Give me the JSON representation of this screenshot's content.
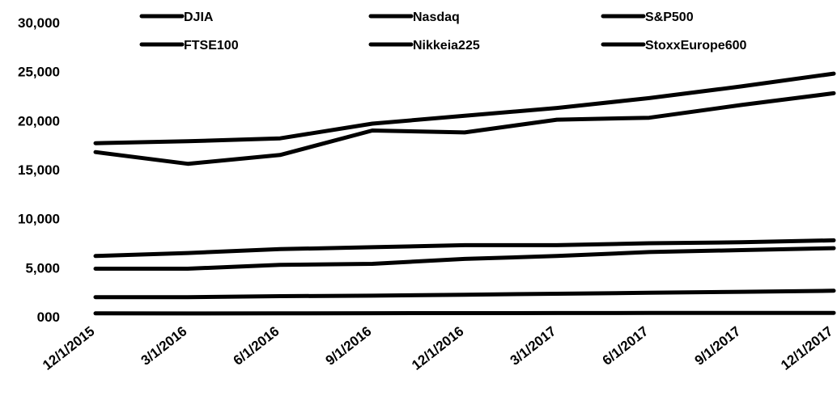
{
  "chart_data": {
    "type": "line",
    "title": "",
    "xlabel": "",
    "ylabel": "",
    "ylim": [
      0,
      30000
    ],
    "yticks": [
      0,
      5000,
      10000,
      15000,
      20000,
      25000,
      30000
    ],
    "ytick_labels": [
      "000",
      "5,000",
      "10,000",
      "15,000",
      "20,000",
      "25,000",
      "30,000"
    ],
    "categories": [
      "12/1/2015",
      "3/1/2016",
      "6/1/2016",
      "9/1/2016",
      "12/1/2016",
      "3/1/2017",
      "6/1/2017",
      "9/1/2017",
      "12/1/2017"
    ],
    "grid": false,
    "legend_placement": "top",
    "series": [
      {
        "name": "DJIA",
        "values": [
          17700,
          17900,
          18200,
          19700,
          20500,
          21300,
          22300,
          23500,
          24800
        ]
      },
      {
        "name": "Nasdaq",
        "values": [
          4900,
          4900,
          5300,
          5400,
          5900,
          6200,
          6600,
          6800,
          7000
        ]
      },
      {
        "name": "S&P500",
        "values": [
          2000,
          2000,
          2100,
          2150,
          2250,
          2350,
          2450,
          2550,
          2650
        ]
      },
      {
        "name": "FTSE100",
        "values": [
          6200,
          6500,
          6900,
          7100,
          7300,
          7300,
          7500,
          7600,
          7800
        ]
      },
      {
        "name": "Nikkeia225",
        "values": [
          16800,
          15600,
          16500,
          19000,
          18800,
          20100,
          20300,
          21600,
          22800
        ]
      },
      {
        "name": "StoxxEurope600",
        "values": [
          350,
          340,
          350,
          360,
          370,
          380,
          385,
          390,
          395
        ]
      }
    ]
  }
}
